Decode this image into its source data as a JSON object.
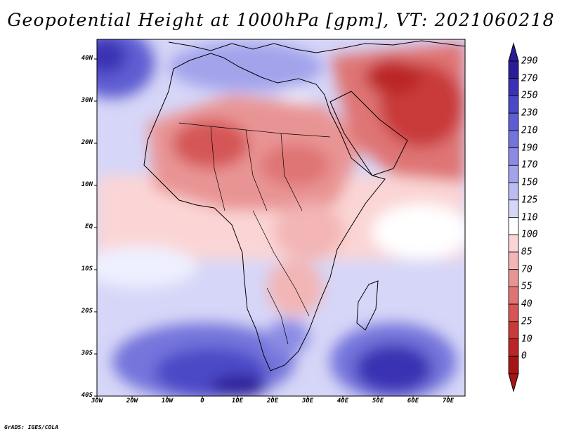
{
  "title": "Geopotential Height at 1000hPa [gpm], VT: 2021060218",
  "credit": "GrADS: IGES/COLA",
  "map": {
    "projection": "lat-lon",
    "lon_range": [
      -30,
      75
    ],
    "lat_range": [
      -40,
      45
    ],
    "variable": "Geopotential Height at 1000hPa",
    "units": "gpm",
    "valid_time": "2021060218",
    "x_ticks": [
      "30W",
      "20W",
      "10W",
      "0",
      "10E",
      "20E",
      "30E",
      "40E",
      "50E",
      "60E",
      "70E"
    ],
    "y_ticks": [
      "40N",
      "30N",
      "20N",
      "10N",
      "EQ",
      "10S",
      "20S",
      "30S",
      "40S"
    ]
  },
  "colorbar": {
    "levels": [
      "290",
      "270",
      "250",
      "230",
      "210",
      "190",
      "170",
      "150",
      "125",
      "110",
      "100",
      "85",
      "70",
      "55",
      "40",
      "25",
      "10",
      "0"
    ],
    "colors": [
      "#2a1c96",
      "#3a31b3",
      "#4b48c6",
      "#5f5dd2",
      "#7474dc",
      "#8b8be4",
      "#a3a3ec",
      "#bcbcf2",
      "#d6d6f8",
      "#ffffff",
      "#fbd5d5",
      "#f3b5b5",
      "#e99494",
      "#df7474",
      "#d55656",
      "#c93a3a",
      "#bb2525",
      "#a51515"
    ]
  }
}
